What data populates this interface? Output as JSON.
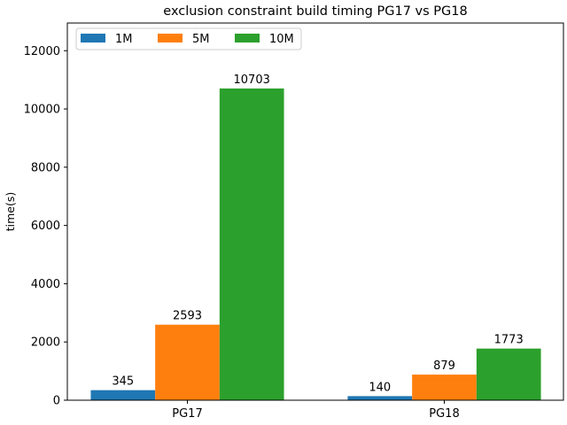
{
  "chart_data": {
    "type": "bar",
    "title": "exclusion constraint build timing PG17 vs PG18",
    "xlabel": "",
    "ylabel": "time(s)",
    "categories": [
      "PG17",
      "PG18"
    ],
    "series": [
      {
        "name": "1M",
        "values": [
          345,
          140
        ],
        "color": "#1f77b4"
      },
      {
        "name": "5M",
        "values": [
          2593,
          879
        ],
        "color": "#ff7f0e"
      },
      {
        "name": "10M",
        "values": [
          10703,
          1773
        ],
        "color": "#2ca02c"
      }
    ],
    "ylim": [
      0,
      12950
    ],
    "yticks": [
      0,
      2000,
      4000,
      6000,
      8000,
      10000,
      12000
    ],
    "grid": false,
    "legend_position": "top-left"
  }
}
